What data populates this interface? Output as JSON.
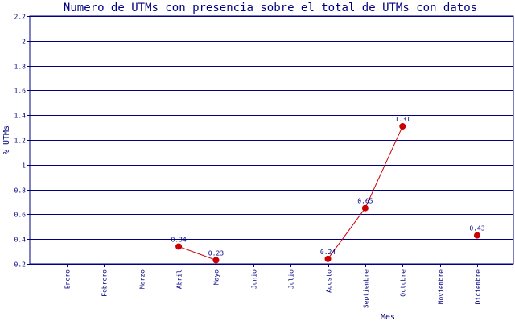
{
  "chart_data": {
    "type": "line",
    "title": "Numero de UTMs con presencia sobre el total de UTMs con datos",
    "xlabel": "Mes",
    "ylabel": "% UTMs",
    "ylim": [
      0.2,
      2.2
    ],
    "yticks": [
      0.2,
      0.4,
      0.6,
      0.8,
      1,
      1.2,
      1.4,
      1.6,
      1.8,
      2,
      2.2
    ],
    "ytick_labels": [
      "0.2",
      "0.4",
      "0.6",
      "0.8",
      "1",
      "1.2",
      "1.4",
      "1.6",
      "1.8",
      "2",
      "2.2"
    ],
    "grid": true,
    "categories": [
      "Enero",
      "Febrero",
      "Marzo",
      "Abril",
      "Mayo",
      "Junio",
      "Julio",
      "Agosto",
      "Septiembre",
      "Octubre",
      "Noviembre",
      "Diciembre"
    ],
    "series": [
      {
        "values": [
          null,
          null,
          null,
          0.34,
          0.23,
          null,
          null,
          0.24,
          0.65,
          1.31,
          null,
          0.43
        ],
        "labels": [
          "",
          "",
          "",
          "0.34",
          "0.23",
          "",
          "",
          "0.24",
          "0.65",
          "1.31",
          "",
          "0.43"
        ]
      }
    ],
    "colors": {
      "line": "#cc0000",
      "marker": "#cc0000",
      "grid": "#000080",
      "axis": "#000080",
      "title": "#000080",
      "text": "#000080",
      "background": "#ffffff"
    }
  }
}
